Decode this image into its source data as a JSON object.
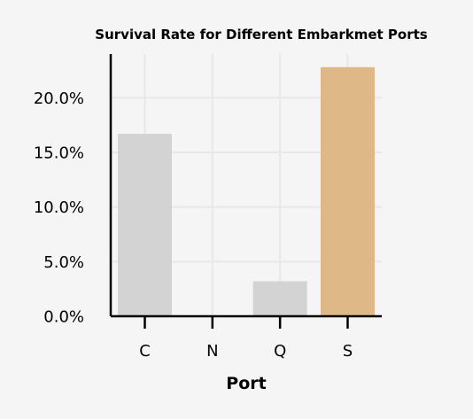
{
  "chart_data": {
    "type": "bar",
    "title": "Survival Rate for Different Embarkmet Ports",
    "xlabel": "Port",
    "ylabel": "",
    "categories": [
      "C",
      "N",
      "Q",
      "S"
    ],
    "values": [
      16.7,
      0.0,
      3.2,
      22.8
    ],
    "value_format": "percent",
    "ylim": [
      0,
      24
    ],
    "yticks": [
      0,
      5,
      10,
      15,
      20
    ],
    "ytick_labels": [
      "0.0%",
      "5.0%",
      "10.0%",
      "15.0%",
      "20.0%"
    ],
    "grid": true,
    "legend": "none",
    "colors": {
      "default_bar": "#d3d3d3",
      "highlight_bar": "#deb887",
      "background": "#f5f5f5",
      "grid": "#e8e8e8"
    },
    "highlight_category": "S"
  }
}
